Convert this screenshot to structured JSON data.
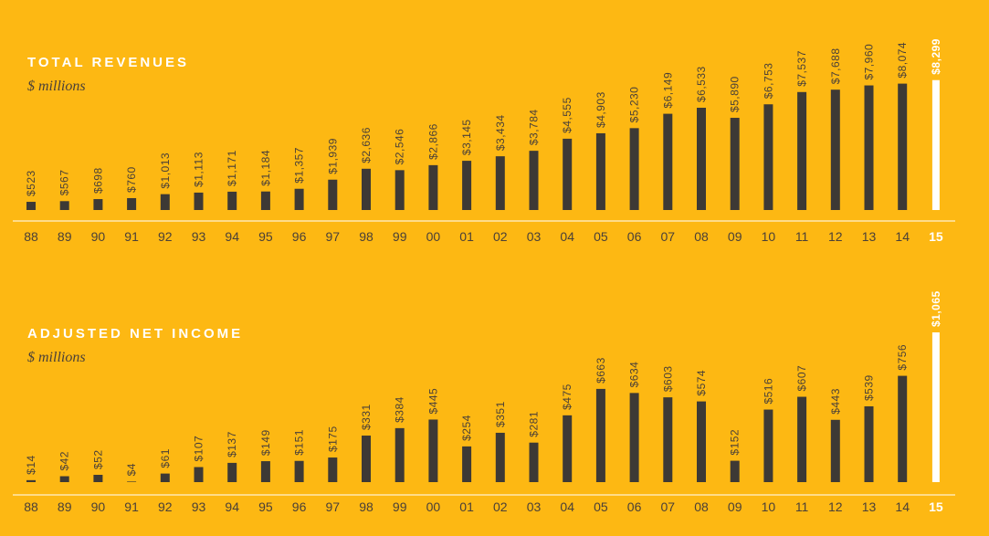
{
  "chart_data": [
    {
      "type": "bar",
      "title": "TOTAL REVENUES",
      "subtitle": "$ millions",
      "categories": [
        "88",
        "89",
        "90",
        "91",
        "92",
        "93",
        "94",
        "95",
        "96",
        "97",
        "98",
        "99",
        "00",
        "01",
        "02",
        "03",
        "04",
        "05",
        "06",
        "07",
        "08",
        "09",
        "10",
        "11",
        "12",
        "13",
        "14",
        "15"
      ],
      "values": [
        523,
        567,
        698,
        760,
        1013,
        1113,
        1171,
        1184,
        1357,
        1939,
        2636,
        2546,
        2866,
        3145,
        3434,
        3784,
        4555,
        4903,
        5230,
        6149,
        6533,
        5890,
        6753,
        7537,
        7688,
        7960,
        8074,
        8299
      ],
      "value_labels": [
        "$523",
        "$567",
        "$698",
        "$760",
        "$1,013",
        "$1,113",
        "$1,171",
        "$1,184",
        "$1,357",
        "$1,939",
        "$2,636",
        "$2,546",
        "$2,866",
        "$3,145",
        "$3,434",
        "$3,784",
        "$4,555",
        "$4,903",
        "$5,230",
        "$6,149",
        "$6,533",
        "$5,890",
        "$6,753",
        "$7,537",
        "$7,688",
        "$7,960",
        "$8,074",
        "$8,299"
      ],
      "highlight_index": 27,
      "ylim": [
        0,
        8400
      ],
      "grid": false,
      "colors": {
        "bar": "#3d3935",
        "highlight": "#ffffff",
        "axis": "#ffffff"
      }
    },
    {
      "type": "bar",
      "title": "ADJUSTED NET INCOME",
      "subtitle": "$ millions",
      "categories": [
        "88",
        "89",
        "90",
        "91",
        "92",
        "93",
        "94",
        "95",
        "96",
        "97",
        "98",
        "99",
        "00",
        "01",
        "02",
        "03",
        "04",
        "05",
        "06",
        "07",
        "08",
        "09",
        "10",
        "11",
        "12",
        "13",
        "14",
        "15"
      ],
      "values": [
        14,
        42,
        52,
        4,
        61,
        107,
        137,
        149,
        151,
        175,
        331,
        384,
        445,
        254,
        351,
        281,
        475,
        663,
        634,
        603,
        574,
        152,
        516,
        607,
        443,
        539,
        756,
        1065
      ],
      "value_labels": [
        "$14",
        "$42",
        "$52",
        "$4",
        "$61",
        "$107",
        "$137",
        "$149",
        "$151",
        "$175",
        "$331",
        "$384",
        "$445",
        "$254",
        "$351",
        "$281",
        "$475",
        "$663",
        "$634",
        "$603",
        "$574",
        "$152",
        "$516",
        "$607",
        "$443",
        "$539",
        "$756",
        "$1,065"
      ],
      "highlight_index": 27,
      "ylim": [
        0,
        1065
      ],
      "grid": false,
      "colors": {
        "bar": "#3d3935",
        "highlight": "#ffffff",
        "axis": "#ffffff"
      }
    }
  ],
  "colors": {
    "background": "#FDB813",
    "text_dark": "#4a4038",
    "text_light": "#ffffff"
  }
}
